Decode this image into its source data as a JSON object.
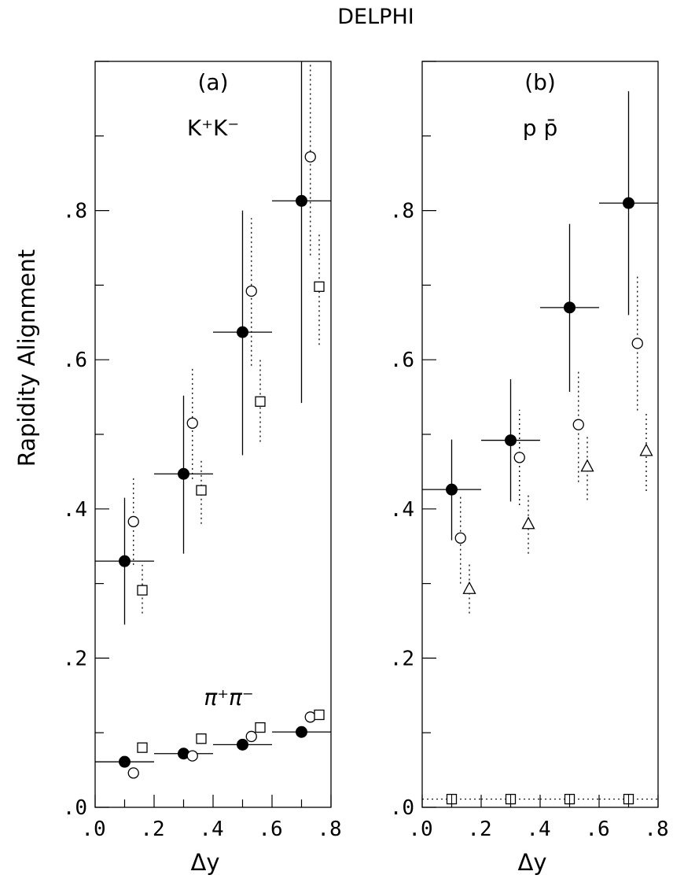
{
  "chart_data": [
    {
      "type": "scatter",
      "title": "DELPHI",
      "panel_label": "(a)",
      "top_label": "K⁺K⁻",
      "bottom_label": "π⁺π⁻",
      "ylabel": "Rapidity Alignment",
      "xlabel": "Δy",
      "xlim": [
        0,
        0.8
      ],
      "ylim": [
        0,
        1.0
      ],
      "x_ticks": [
        ".0",
        ".2",
        ".4",
        ".6",
        ".8"
      ],
      "y_ticks": [
        ".0",
        ".2",
        ".4",
        ".6",
        ".8"
      ],
      "series": [
        {
          "marker": "filled-circle",
          "style": "solid",
          "points": [
            {
              "x": 0.1,
              "y": 0.33,
              "ylo": 0.245,
              "yhi": 0.415,
              "xlo": 0.0,
              "xhi": 0.2
            },
            {
              "x": 0.3,
              "y": 0.447,
              "ylo": 0.34,
              "yhi": 0.552,
              "xlo": 0.2,
              "xhi": 0.4
            },
            {
              "x": 0.5,
              "y": 0.637,
              "ylo": 0.472,
              "yhi": 0.8,
              "xlo": 0.4,
              "xhi": 0.6
            },
            {
              "x": 0.7,
              "y": 0.813,
              "ylo": 0.542,
              "yhi": 1.0,
              "xlo": 0.6,
              "xhi": 0.8
            }
          ]
        },
        {
          "marker": "open-circle",
          "style": "dotted",
          "points": [
            {
              "x": 0.13,
              "y": 0.383,
              "ylo": 0.325,
              "yhi": 0.442
            },
            {
              "x": 0.33,
              "y": 0.515,
              "ylo": 0.44,
              "yhi": 0.59
            },
            {
              "x": 0.53,
              "y": 0.692,
              "ylo": 0.592,
              "yhi": 0.79
            },
            {
              "x": 0.73,
              "y": 0.872,
              "ylo": 0.74,
              "yhi": 1.0
            }
          ]
        },
        {
          "marker": "open-square",
          "style": "dotted",
          "points": [
            {
              "x": 0.16,
              "y": 0.291,
              "ylo": 0.26,
              "yhi": 0.325
            },
            {
              "x": 0.36,
              "y": 0.425,
              "ylo": 0.38,
              "yhi": 0.468
            },
            {
              "x": 0.56,
              "y": 0.544,
              "ylo": 0.49,
              "yhi": 0.6
            },
            {
              "x": 0.76,
              "y": 0.698,
              "ylo": 0.62,
              "yhi": 0.772
            }
          ]
        },
        {
          "marker": "filled-circle",
          "style": "solid",
          "group": "pi",
          "points": [
            {
              "x": 0.1,
              "y": 0.061,
              "xlo": 0.0,
              "xhi": 0.2
            },
            {
              "x": 0.3,
              "y": 0.072,
              "xlo": 0.2,
              "xhi": 0.4
            },
            {
              "x": 0.5,
              "y": 0.084,
              "xlo": 0.4,
              "xhi": 0.6
            },
            {
              "x": 0.7,
              "y": 0.101,
              "xlo": 0.6,
              "xhi": 0.8
            }
          ]
        },
        {
          "marker": "open-circle",
          "group": "pi",
          "points": [
            {
              "x": 0.13,
              "y": 0.046
            },
            {
              "x": 0.33,
              "y": 0.069
            },
            {
              "x": 0.53,
              "y": 0.095
            },
            {
              "x": 0.73,
              "y": 0.121
            }
          ]
        },
        {
          "marker": "open-square",
          "group": "pi",
          "points": [
            {
              "x": 0.16,
              "y": 0.08
            },
            {
              "x": 0.36,
              "y": 0.092
            },
            {
              "x": 0.56,
              "y": 0.107
            },
            {
              "x": 0.76,
              "y": 0.124
            }
          ]
        }
      ]
    },
    {
      "type": "scatter",
      "panel_label": "(b)",
      "top_label": "p p̄",
      "xlabel": "Δy",
      "xlim": [
        0,
        0.8
      ],
      "ylim": [
        0,
        1.0
      ],
      "x_ticks": [
        ".0",
        ".2",
        ".4",
        ".6",
        ".8"
      ],
      "y_ticks": [
        ".0",
        ".2",
        ".4",
        ".6",
        ".8"
      ],
      "series": [
        {
          "marker": "filled-circle",
          "style": "solid",
          "points": [
            {
              "x": 0.1,
              "y": 0.426,
              "ylo": 0.358,
              "yhi": 0.493,
              "xlo": 0.0,
              "xhi": 0.2
            },
            {
              "x": 0.3,
              "y": 0.492,
              "ylo": 0.41,
              "yhi": 0.574,
              "xlo": 0.2,
              "xhi": 0.4
            },
            {
              "x": 0.5,
              "y": 0.67,
              "ylo": 0.557,
              "yhi": 0.782,
              "xlo": 0.4,
              "xhi": 0.6
            },
            {
              "x": 0.7,
              "y": 0.81,
              "ylo": 0.66,
              "yhi": 0.96,
              "xlo": 0.6,
              "xhi": 0.8
            }
          ]
        },
        {
          "marker": "open-circle",
          "style": "dotted",
          "points": [
            {
              "x": 0.13,
              "y": 0.361,
              "ylo": 0.3,
              "yhi": 0.42
            },
            {
              "x": 0.33,
              "y": 0.469,
              "ylo": 0.405,
              "yhi": 0.533
            },
            {
              "x": 0.53,
              "y": 0.513,
              "ylo": 0.436,
              "yhi": 0.588
            },
            {
              "x": 0.73,
              "y": 0.622,
              "ylo": 0.532,
              "yhi": 0.712
            }
          ]
        },
        {
          "marker": "open-triangle",
          "style": "dotted",
          "points": [
            {
              "x": 0.16,
              "y": 0.293,
              "ylo": 0.26,
              "yhi": 0.326
            },
            {
              "x": 0.36,
              "y": 0.38,
              "ylo": 0.34,
              "yhi": 0.42
            },
            {
              "x": 0.56,
              "y": 0.457,
              "ylo": 0.412,
              "yhi": 0.5
            },
            {
              "x": 0.76,
              "y": 0.478,
              "ylo": 0.424,
              "yhi": 0.53
            }
          ]
        },
        {
          "marker": "boxed-cross",
          "style": "dotted-horizontal",
          "points": [
            {
              "x": 0.1,
              "y": 0.011
            },
            {
              "x": 0.3,
              "y": 0.011
            },
            {
              "x": 0.5,
              "y": 0.011
            },
            {
              "x": 0.7,
              "y": 0.011
            }
          ]
        }
      ]
    }
  ]
}
